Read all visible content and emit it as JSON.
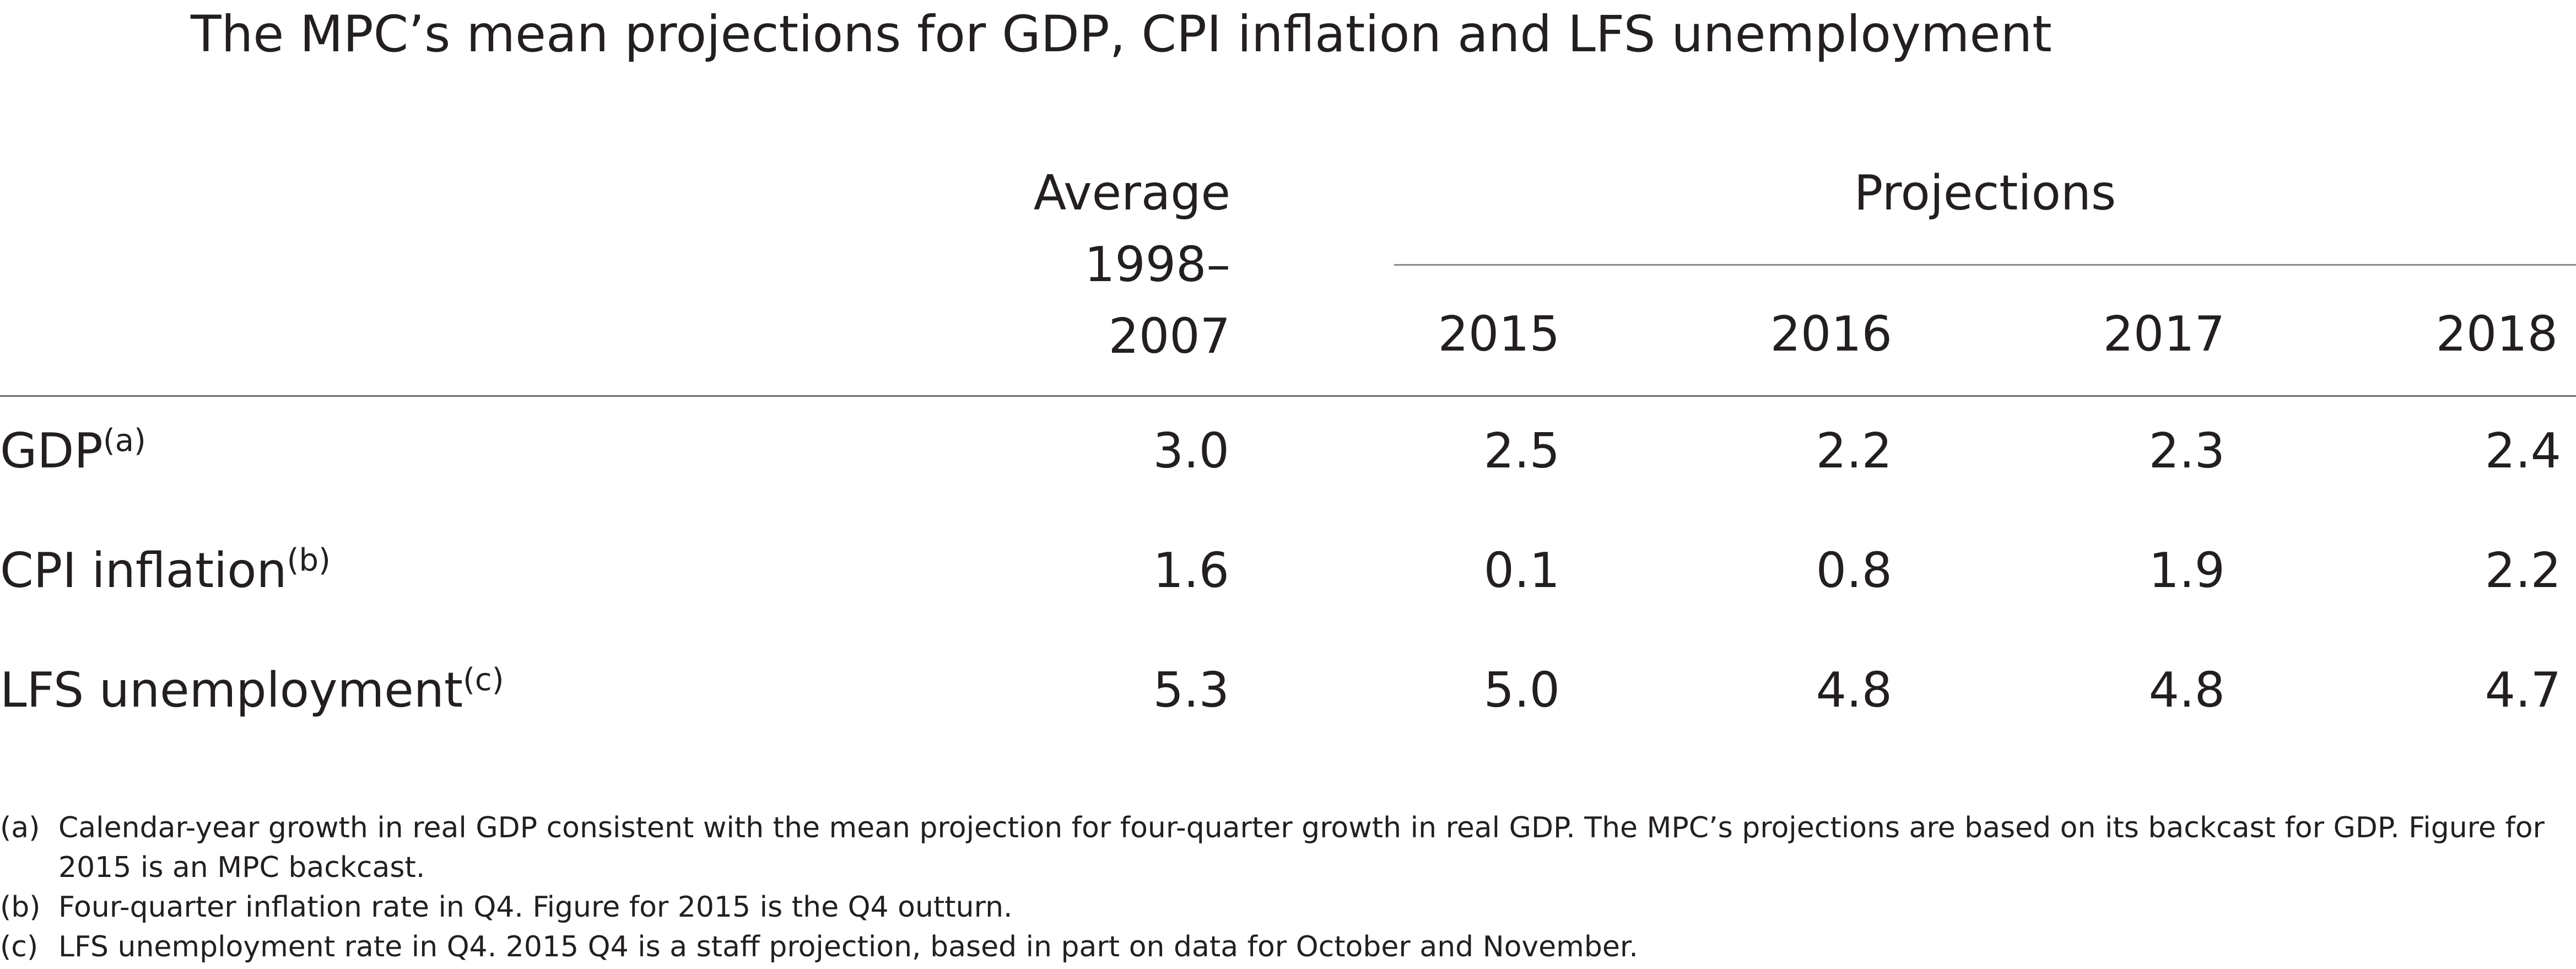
{
  "title": "The MPC’s mean projections for GDP, CPI inflation and LFS unemployment",
  "header": {
    "average_label_line1": "Average",
    "average_label_line2": "1998–",
    "average_label_line3": "2007",
    "projections_label": "Projections",
    "years": [
      "2015",
      "2016",
      "2017",
      "2018"
    ]
  },
  "rows": [
    {
      "label": "GDP",
      "note": "(a)",
      "values": [
        "3.0",
        "2.5",
        "2.2",
        "2.3",
        "2.4"
      ]
    },
    {
      "label": "CPI inflation",
      "note": "(b)",
      "values": [
        "1.6",
        "0.1",
        "0.8",
        "1.9",
        "2.2"
      ]
    },
    {
      "label": "LFS unemployment",
      "note": "(c)",
      "values": [
        "5.3",
        "5.0",
        "4.8",
        "4.8",
        "4.7"
      ]
    }
  ],
  "footnotes": [
    {
      "key": "(a)",
      "text": "Calendar-year growth in real GDP consistent with the mean projection for four-quarter growth in real GDP.  The MPC’s projections are based on its backcast for GDP.  Figure for 2015 is an MPC backcast."
    },
    {
      "key": "(b)",
      "text": "Four-quarter inflation rate in Q4.  Figure for 2015 is the Q4 outturn."
    },
    {
      "key": "(c)",
      "text": "LFS unemployment rate in Q4.  2015 Q4 is a staff projection, based in part on data for October and November."
    }
  ]
}
